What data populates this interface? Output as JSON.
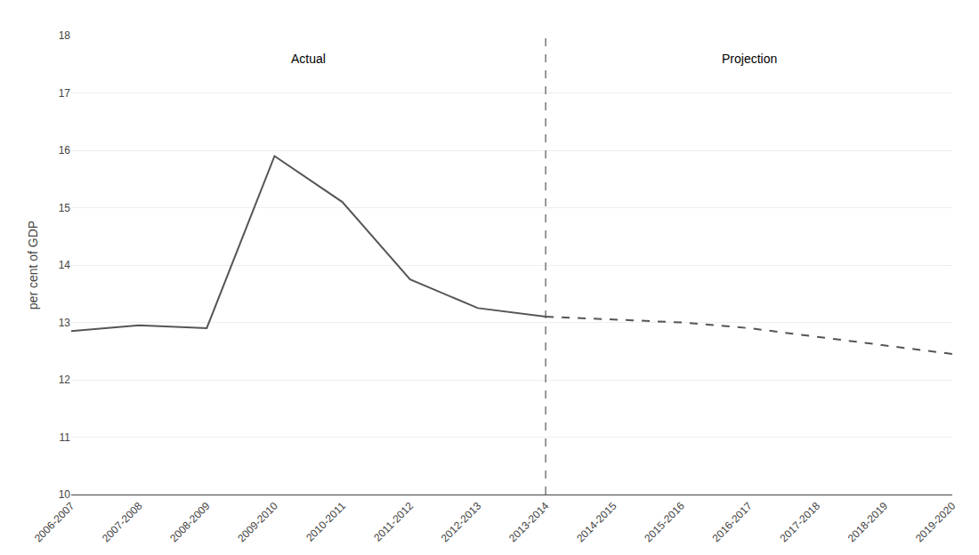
{
  "chart_data": {
    "type": "line",
    "ylabel": "per cent of GDP",
    "categories": [
      "2006-2007",
      "2007-2008",
      "2008-2009",
      "2009-2010",
      "2010-2011",
      "2011-2012",
      "2012-2013",
      "2013-2014",
      "2014-2015",
      "2015-2016",
      "2016-2017",
      "2017-2018",
      "2018-2019",
      "2019-2020"
    ],
    "series": [
      {
        "name": "Actual",
        "color": "#555555",
        "line_style": "solid",
        "values": [
          12.85,
          12.95,
          12.9,
          15.9,
          15.1,
          13.75,
          13.25,
          13.1,
          null,
          null,
          null,
          null,
          null,
          null
        ]
      },
      {
        "name": "Projection",
        "color": "#555555",
        "line_style": "dashed",
        "values": [
          null,
          null,
          null,
          null,
          null,
          null,
          null,
          13.1,
          13.05,
          13.0,
          12.9,
          12.75,
          12.6,
          12.45
        ]
      }
    ],
    "divider": {
      "x": "2013-2014",
      "color": "#555555",
      "line_style": "dashed"
    },
    "ylim": [
      10,
      18
    ],
    "yticks": [
      10,
      11,
      12,
      13,
      14,
      15,
      16,
      17,
      18
    ],
    "grid": true
  }
}
